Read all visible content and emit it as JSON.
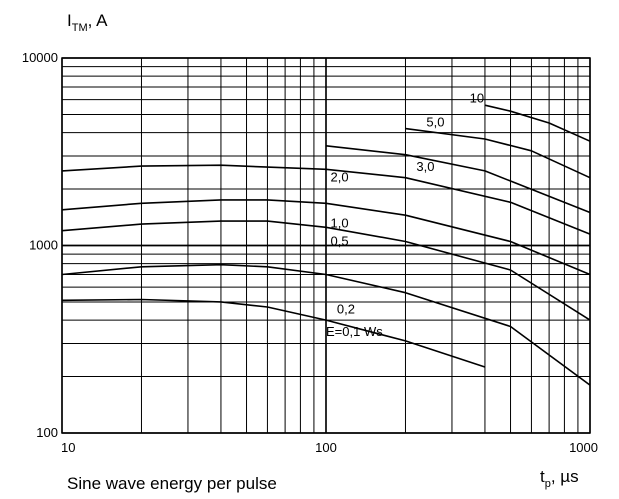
{
  "caption": "Sine wave energy per pulse",
  "chart_data": {
    "type": "line",
    "xscale": "log",
    "yscale": "log",
    "xlim": [
      10,
      1000
    ],
    "ylim": [
      100,
      10000
    ],
    "ylabel": "I",
    "ylabel_sub": "TM",
    "ylabel_unit": ", A",
    "xlabel": "t",
    "xlabel_sub": "p",
    "xlabel_unit": ", µs",
    "x_ticks": [
      {
        "value": 10,
        "label": "10"
      },
      {
        "value": 100,
        "label": "100"
      },
      {
        "value": 1000,
        "label": "1000"
      }
    ],
    "y_ticks": [
      {
        "value": 100,
        "label": "100"
      },
      {
        "value": 1000,
        "label": "1000"
      },
      {
        "value": 10000,
        "label": "10000"
      }
    ],
    "grid": true,
    "series": [
      {
        "name": "E=0,1 Ws",
        "label_at": [
          100,
          330
        ],
        "x": [
          10,
          20,
          40,
          60,
          100,
          200,
          400
        ],
        "y": [
          510,
          515,
          500,
          470,
          400,
          310,
          225
        ]
      },
      {
        "name": "0,2",
        "label_at": [
          110,
          435
        ],
        "x": [
          10,
          20,
          40,
          60,
          100,
          200,
          500,
          1000
        ],
        "y": [
          700,
          770,
          790,
          770,
          700,
          560,
          370,
          180
        ]
      },
      {
        "name": "0,5",
        "label_at": [
          104,
          1000
        ],
        "x": [
          10,
          20,
          40,
          60,
          100,
          200,
          500,
          1000
        ],
        "y": [
          1200,
          1300,
          1350,
          1350,
          1250,
          1050,
          740,
          400
        ]
      },
      {
        "name": "1,0",
        "label_at": [
          104,
          1250
        ],
        "x": [
          10,
          20,
          40,
          60,
          100,
          200,
          500,
          1000
        ],
        "y": [
          1550,
          1680,
          1750,
          1750,
          1680,
          1450,
          1050,
          700
        ]
      },
      {
        "name": "2,0",
        "label_at": [
          104,
          2200
        ],
        "x": [
          10,
          20,
          40,
          60,
          100,
          200,
          500,
          1000
        ],
        "y": [
          2500,
          2650,
          2680,
          2620,
          2550,
          2300,
          1700,
          1150
        ]
      },
      {
        "name": "3,0",
        "label_at": [
          220,
          2500
        ],
        "x": [
          100,
          200,
          400,
          1000
        ],
        "y": [
          3400,
          3050,
          2500,
          1500
        ]
      },
      {
        "name": "5,0",
        "label_at": [
          240,
          4300
        ],
        "x": [
          200,
          400,
          600,
          1000
        ],
        "y": [
          4200,
          3700,
          3200,
          2300
        ]
      },
      {
        "name": "10",
        "label_at": [
          350,
          5800
        ],
        "x": [
          400,
          500,
          700,
          1000
        ],
        "y": [
          5600,
          5200,
          4500,
          3600
        ]
      }
    ]
  }
}
